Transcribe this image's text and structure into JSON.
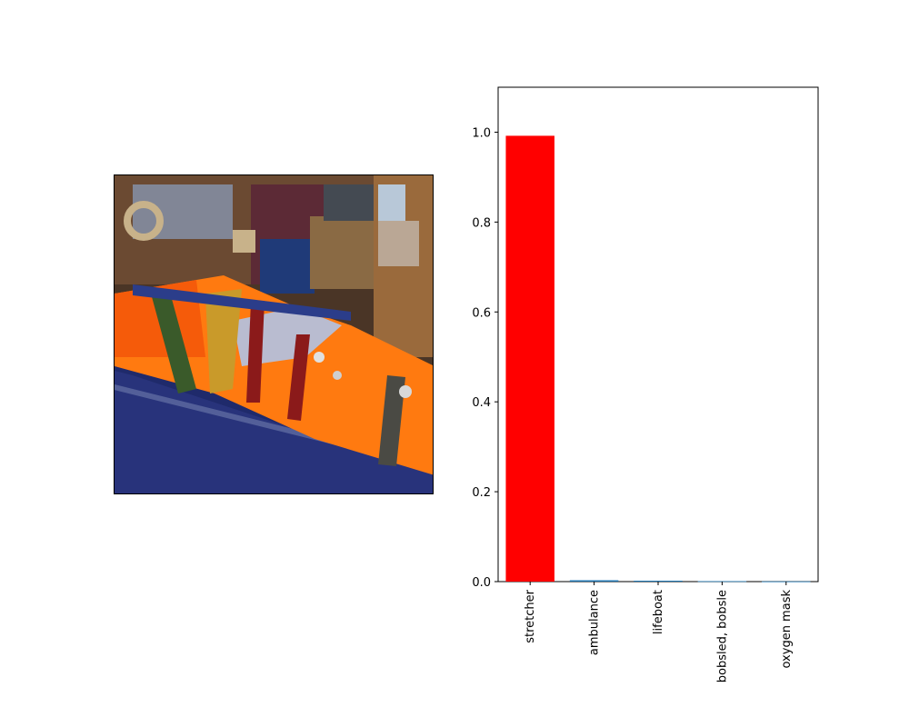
{
  "image_panel": {
    "icon": "photo-stretcher-immobilized-mannequin"
  },
  "chart_data": {
    "type": "bar",
    "categories": [
      "stretcher",
      "ambulance",
      "lifeboat",
      "bobsled, bobsle",
      "oxygen mask"
    ],
    "values": [
      0.992,
      0.003,
      0.002,
      0.001,
      0.0005
    ],
    "colors": [
      "#ff0000",
      "#1f77b4",
      "#1f77b4",
      "#1f77b4",
      "#1f77b4"
    ],
    "ylim": [
      0,
      1.1
    ],
    "yticks": [
      "0.0",
      "0.2",
      "0.4",
      "0.6",
      "0.8",
      "1.0"
    ],
    "ytick_values": [
      0,
      0.2,
      0.4,
      0.6,
      0.8,
      1.0
    ],
    "grid": false
  }
}
